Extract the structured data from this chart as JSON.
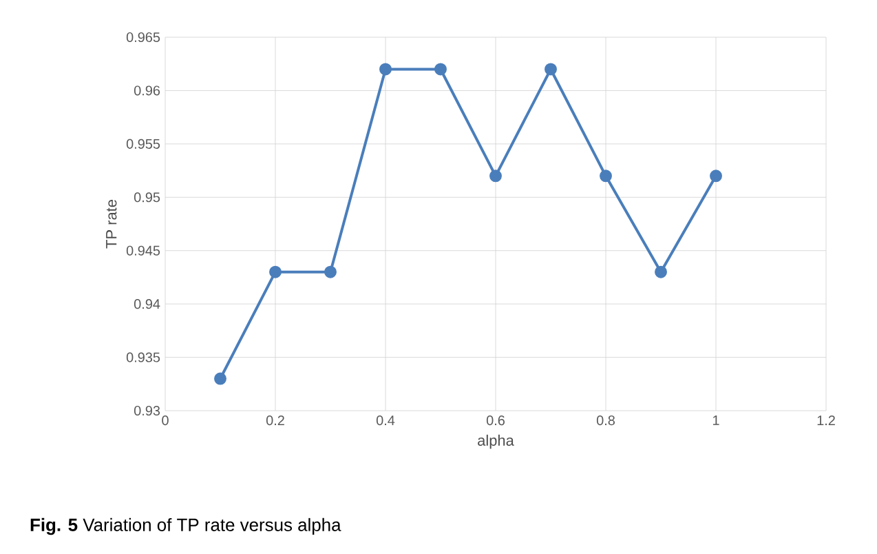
{
  "chart_data": {
    "type": "line",
    "xlabel": "alpha",
    "ylabel": "TP rate",
    "x": [
      0.1,
      0.2,
      0.3,
      0.4,
      0.5,
      0.6,
      0.7,
      0.8,
      0.9,
      1
    ],
    "series": [
      {
        "color": "#4a7ebb",
        "values": [
          0.933,
          0.943,
          0.943,
          0.962,
          0.962,
          0.952,
          0.962,
          0.952,
          0.943,
          0.952
        ]
      }
    ],
    "xlim": [
      0,
      1.2
    ],
    "xticks": [
      0,
      0.2,
      0.4,
      0.6,
      0.8,
      1,
      1.2
    ],
    "ylim": [
      0.93,
      0.965
    ],
    "yticks": [
      0.93,
      0.935,
      0.94,
      0.945,
      0.95,
      0.955,
      0.96,
      0.965
    ],
    "grid": true,
    "marker": "circle",
    "line_style": "solid",
    "annotations": [
      "**Fig. 5** Variation of TP rate versus alpha"
    ]
  }
}
